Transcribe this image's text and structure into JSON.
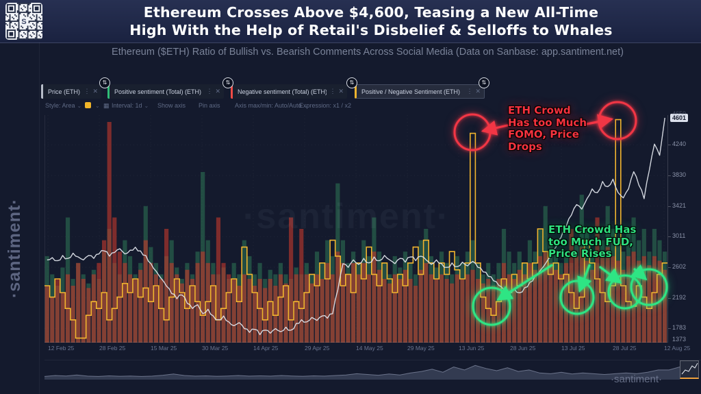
{
  "header": {
    "title_line1": "Ethereum Crosses Above $4,600, Teasing a New All-Time",
    "title_line2": "High With the Help of Retail's Disbelief & Selloffs to Whales",
    "subtitle": "Ethereum ($ETH) Ratio of Bullish vs. Bearish Comments Across Social Media (Data on Sanbase: app.santiment.net)"
  },
  "branding": {
    "sidebar_watermark": "·santiment·",
    "chart_watermark": "·santiment·",
    "footer_watermark": "·santiment·",
    "qr_logo": "S"
  },
  "icons": {
    "kebab": "⋮",
    "close": "✕",
    "swap": "⇅",
    "chevron": "⌄",
    "calendar": "▦"
  },
  "tabs": [
    {
      "label": "Price (ETH)",
      "color": "#b7bdc9",
      "active": false
    },
    {
      "label": "Positive sentiment (Total) (ETH)",
      "color": "#2fbd77",
      "active": false
    },
    {
      "label": "Negative sentiment (Total) (ETH)",
      "color": "#ef4b46",
      "active": false
    },
    {
      "label": "Positive / Negative Sentiment (ETH)",
      "color": "#f2b52e",
      "active": true
    }
  ],
  "toolbar": {
    "style_label": "Style: Area",
    "swatch_color": "#f0b429",
    "interval_label": "Interval: 1d",
    "show_axis": "Show axis",
    "pin_axis": "Pin axis",
    "axis_minmax": "Axis max/min: Auto/Auto",
    "expression": "Expression: x1 / x2"
  },
  "annotations": {
    "fomo": {
      "text": "ETH Crowd\nHas too Much\nFOMO, Price\nDrops",
      "color": "#f23645",
      "circles": [
        [
          690,
          193,
          26
        ],
        [
          902,
          176,
          27
        ]
      ],
      "arrows": [
        [
          741,
          183,
          706,
          191
        ],
        [
          857,
          181,
          893,
          174
        ]
      ]
    },
    "fud": {
      "text": "ETH Crowd Has\ntoo Much FUD,\nPrice Rises",
      "color": "#2ee584",
      "circles": [
        [
          718,
          447,
          27
        ],
        [
          843,
          434,
          24
        ],
        [
          913,
          426,
          24
        ],
        [
          948,
          419,
          26
        ]
      ],
      "arrows": [
        [
          806,
          387,
          728,
          437
        ],
        [
          861,
          387,
          847,
          424
        ],
        [
          877,
          390,
          906,
          412
        ],
        [
          927,
          393,
          943,
          407
        ]
      ]
    }
  },
  "chart_data": {
    "type": "composite",
    "note": "daily data 12 Feb 25 - 12 Aug 25; sentiment/ratio values are fractions of pane height (hidden axes); price in USD on right axis",
    "x_ticks": [
      "12 Feb 25",
      "28 Feb 25",
      "15 Mar 25",
      "30 Mar 25",
      "14 Apr 25",
      "29 Apr 25",
      "14 May 25",
      "29 May 25",
      "13 Jun 25",
      "28 Jun 25",
      "13 Jul 25",
      "28 Jul 25",
      "12 Aug 25"
    ],
    "y_axis": {
      "labels": [
        4650,
        4240,
        3830,
        3421,
        3011,
        2602,
        2192,
        1783,
        1373
      ],
      "price_badge": "4601",
      "ylim": [
        1373,
        4650
      ]
    },
    "colors": {
      "price": "#dde1e9",
      "positive": "#2f8059",
      "negative": "#c0392b",
      "ratio": "#f2b52e",
      "grid": "rgba(255,255,255,0.055)"
    },
    "legend_position": "top-tabs",
    "series": [
      {
        "name": "Price (ETH)",
        "type": "line",
        "values": [
          2700,
          2730,
          2690,
          2760,
          2720,
          2790,
          2740,
          2700,
          2760,
          2720,
          2780,
          2820,
          2750,
          2800,
          2850,
          2780,
          2830,
          2870,
          2820,
          2760,
          2650,
          2550,
          2450,
          2350,
          2250,
          2180,
          2230,
          2120,
          2050,
          2100,
          1980,
          2040,
          1950,
          1900,
          1950,
          1870,
          1820,
          1860,
          1780,
          1730,
          1770,
          1700,
          1760,
          1720,
          1780,
          1740,
          1800,
          1760,
          1850,
          1900,
          1870,
          1930,
          1890,
          1950,
          1920,
          1980,
          2300,
          2650,
          2600,
          2700,
          2640,
          2720,
          2660,
          2740,
          2690,
          2760,
          2700,
          2650,
          2720,
          2670,
          2740,
          2690,
          2750,
          2700,
          2640,
          2700,
          2650,
          2600,
          2660,
          2610,
          2670,
          2620,
          2680,
          2600,
          2540,
          2480,
          2420,
          2360,
          2300,
          2250,
          2310,
          2260,
          2330,
          2400,
          2480,
          2560,
          2650,
          2750,
          2870,
          3000,
          3150,
          3300,
          3440,
          3380,
          3520,
          3650,
          3600,
          3750,
          3680,
          3780,
          3600,
          3530,
          3650,
          3880,
          3700,
          3520,
          3900,
          4250,
          4100,
          4601
        ]
      },
      {
        "name": "Positive sentiment (Total) (ETH)",
        "type": "area",
        "values_rel": [
          0.38,
          0.3,
          0.25,
          0.33,
          0.55,
          0.28,
          0.35,
          0.3,
          0.26,
          0.32,
          0.28,
          0.4,
          0.5,
          0.35,
          0.3,
          0.45,
          0.38,
          0.3,
          0.35,
          0.6,
          0.42,
          0.35,
          0.3,
          0.38,
          0.45,
          0.33,
          0.28,
          0.35,
          0.3,
          0.4,
          0.75,
          0.45,
          0.35,
          0.3,
          0.33,
          0.28,
          0.35,
          0.3,
          0.45,
          0.38,
          0.3,
          0.35,
          0.28,
          0.32,
          0.3,
          0.35,
          0.3,
          0.28,
          0.33,
          0.3,
          0.35,
          0.3,
          0.4,
          0.35,
          0.45,
          0.38,
          0.7,
          0.45,
          0.35,
          0.4,
          0.35,
          0.45,
          0.38,
          0.55,
          0.4,
          0.35,
          0.3,
          0.38,
          0.33,
          0.4,
          0.35,
          0.3,
          0.45,
          0.5,
          0.38,
          0.33,
          0.4,
          0.35,
          0.3,
          0.38,
          0.35,
          0.4,
          0.45,
          0.35,
          0.3,
          0.35,
          0.3,
          0.35,
          0.5,
          0.4,
          0.35,
          0.4,
          0.35,
          0.45,
          0.4,
          0.5,
          0.6,
          0.45,
          0.4,
          0.35,
          0.4,
          0.35,
          0.45,
          0.65,
          0.5,
          0.4,
          0.35,
          0.45,
          0.6,
          0.5,
          0.45,
          0.4,
          0.5,
          0.55,
          0.45,
          0.5,
          0.4,
          0.5,
          0.45,
          0.4
        ]
      },
      {
        "name": "Negative sentiment (Total) (ETH)",
        "type": "area",
        "values_rel": [
          0.25,
          0.2,
          0.28,
          0.22,
          0.3,
          0.25,
          0.35,
          0.28,
          0.24,
          0.3,
          0.35,
          0.45,
          0.97,
          0.55,
          0.4,
          0.35,
          0.3,
          0.28,
          0.32,
          0.45,
          0.35,
          0.3,
          0.28,
          0.5,
          0.35,
          0.3,
          0.26,
          0.32,
          0.28,
          0.35,
          0.4,
          0.35,
          0.3,
          0.55,
          0.35,
          0.3,
          0.28,
          0.25,
          0.3,
          0.28,
          0.25,
          0.28,
          0.24,
          0.28,
          0.25,
          0.3,
          0.26,
          0.55,
          0.3,
          0.5,
          0.3,
          0.26,
          0.3,
          0.28,
          0.35,
          0.3,
          0.4,
          0.35,
          0.3,
          0.35,
          0.3,
          0.35,
          0.3,
          0.4,
          0.32,
          0.28,
          0.26,
          0.3,
          0.28,
          0.32,
          0.28,
          0.25,
          0.32,
          0.35,
          0.3,
          0.28,
          0.3,
          0.28,
          0.26,
          0.3,
          0.28,
          0.3,
          0.32,
          0.28,
          0.26,
          0.28,
          0.25,
          0.28,
          0.35,
          0.3,
          0.28,
          0.32,
          0.3,
          0.35,
          0.32,
          0.38,
          0.4,
          0.35,
          0.32,
          0.3,
          0.35,
          0.5,
          0.38,
          0.42,
          0.36,
          0.32,
          0.55,
          0.4,
          0.42,
          0.38,
          0.36,
          0.32,
          0.38,
          0.4,
          0.36,
          0.38,
          0.34,
          0.38,
          0.36,
          0.32
        ]
      },
      {
        "name": "Positive / Negative Sentiment (ETH)",
        "type": "step-line",
        "values_rel": [
          0.25,
          0.2,
          0.28,
          0.22,
          0.15,
          0.1,
          0.02,
          0.02,
          0.12,
          0.18,
          0.15,
          0.22,
          0.1,
          0.15,
          0.2,
          0.26,
          0.22,
          0.28,
          0.2,
          0.24,
          0.18,
          0.25,
          0.15,
          0.1,
          0.2,
          0.28,
          0.22,
          0.15,
          0.25,
          0.18,
          0.12,
          0.18,
          0.25,
          0.1,
          0.15,
          0.22,
          0.28,
          0.18,
          0.42,
          0.3,
          0.22,
          0.15,
          0.1,
          0.18,
          0.12,
          0.2,
          0.25,
          0.1,
          0.18,
          0.15,
          0.22,
          0.3,
          0.25,
          0.35,
          0.28,
          0.45,
          0.38,
          0.25,
          0.3,
          0.22,
          0.35,
          0.28,
          0.42,
          0.3,
          0.25,
          0.35,
          0.28,
          0.22,
          0.3,
          0.25,
          0.35,
          0.42,
          0.3,
          0.45,
          0.35,
          0.28,
          0.35,
          0.3,
          0.4,
          0.32,
          0.28,
          0.35,
          0.92,
          0.35,
          0.2,
          0.15,
          0.12,
          0.18,
          0.28,
          0.22,
          0.3,
          0.25,
          0.35,
          0.28,
          0.35,
          0.5,
          0.4,
          0.3,
          0.35,
          0.28,
          0.3,
          0.22,
          0.15,
          0.2,
          0.45,
          0.35,
          0.28,
          0.22,
          0.18,
          0.25,
          0.98,
          0.25,
          0.18,
          0.16,
          0.25,
          0.2,
          0.15,
          0.22,
          0.3,
          0.35
        ]
      }
    ],
    "minimap": [
      0.12,
      0.18,
      0.15,
      0.22,
      0.14,
      0.12,
      0.16,
      0.13,
      0.15,
      0.12,
      0.14,
      0.2,
      0.28,
      0.18,
      0.14,
      0.16,
      0.13,
      0.15,
      0.18,
      0.14,
      0.16,
      0.14,
      0.18,
      0.15,
      0.13,
      0.16,
      0.14,
      0.18,
      0.22,
      0.3,
      0.25,
      0.2,
      0.28,
      0.22,
      0.35,
      0.45,
      0.6,
      0.4,
      0.75,
      0.55,
      0.85,
      0.65,
      0.5,
      0.7,
      0.45,
      0.55,
      0.35,
      0.3,
      0.4,
      0.28,
      0.35,
      0.3,
      0.25,
      0.3,
      0.35,
      0.3,
      0.4,
      0.55,
      0.55,
      0.75
    ]
  }
}
